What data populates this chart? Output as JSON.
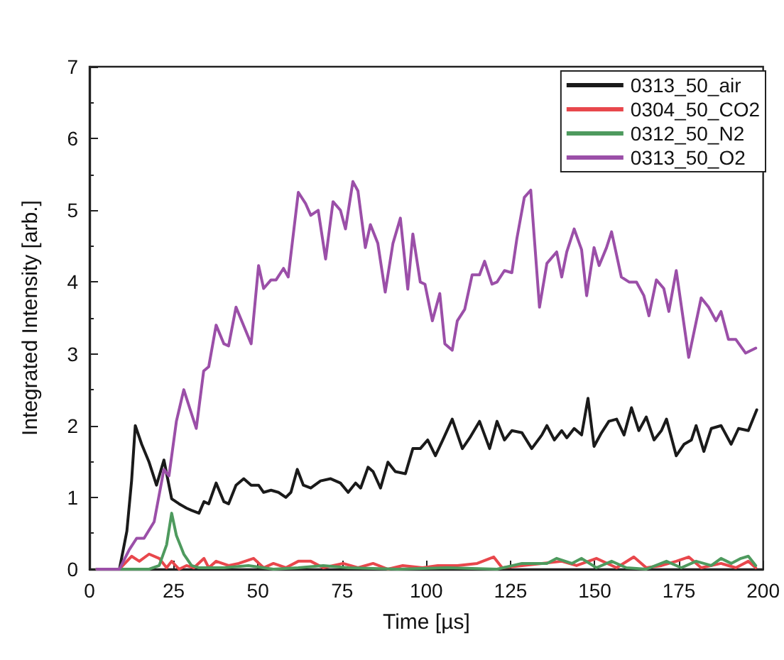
{
  "chart_data": {
    "type": "line",
    "xlabel": "Time [µs]",
    "ylabel": "Integrated Intensity [arb.]",
    "xlim": [
      0,
      200
    ],
    "xticks": [
      0,
      25,
      50,
      75,
      100,
      125,
      150,
      175,
      200
    ],
    "ylim": [
      0,
      7
    ],
    "yticks": [
      0,
      1,
      2,
      3,
      4,
      5,
      6,
      7
    ],
    "grid": false,
    "legend": "top right",
    "marker": "none",
    "line_style": "solid",
    "series": [
      {
        "name": "0313_50_air",
        "color": "#1a1a1a",
        "x": [
          2.2,
          8.9,
          11.1,
          12.5,
          13.6,
          15.5,
          17.7,
          19.9,
          22.1,
          24.4,
          26.6,
          28.8,
          30.3,
          32.5,
          34,
          35.4,
          37.6,
          39.9,
          41.3,
          43.5,
          45.8,
          48,
          50.2,
          51.7,
          53.9,
          56.1,
          58.3,
          59.8,
          61.7,
          63.5,
          65.7,
          68.6,
          71.6,
          74.5,
          76.8,
          79,
          80.5,
          82.7,
          84.2,
          86.4,
          88.6,
          90.8,
          93.8,
          96,
          98.2,
          100.4,
          102.7,
          104.9,
          107.7,
          110.7,
          112.9,
          115.8,
          118.8,
          121,
          123.2,
          125.4,
          128.4,
          131.3,
          134.3,
          135.8,
          138,
          140.2,
          141.7,
          143.9,
          146.1,
          148,
          149.8,
          152,
          154.2,
          156.5,
          158.7,
          160.9,
          163.1,
          165.3,
          167.6,
          169.8,
          171.3,
          174.2,
          176.5,
          178.7,
          180.1,
          182.4,
          184.6,
          187.5,
          190.5,
          192.7,
          195.6,
          198.1
        ],
        "values": [
          0,
          0,
          0.53,
          1.23,
          2.0,
          1.74,
          1.49,
          1.17,
          1.52,
          0.98,
          0.91,
          0.85,
          0.82,
          0.78,
          0.94,
          0.91,
          1.2,
          0.94,
          0.91,
          1.17,
          1.26,
          1.17,
          1.17,
          1.07,
          1.1,
          1.07,
          1.0,
          1.07,
          1.39,
          1.17,
          1.13,
          1.23,
          1.26,
          1.2,
          1.07,
          1.2,
          1.13,
          1.42,
          1.36,
          1.13,
          1.49,
          1.36,
          1.33,
          1.68,
          1.68,
          1.8,
          1.58,
          1.8,
          2.09,
          1.68,
          1.83,
          2.06,
          1.68,
          2.06,
          1.8,
          1.93,
          1.9,
          1.68,
          1.87,
          2.0,
          1.8,
          1.93,
          1.83,
          1.96,
          1.87,
          2.38,
          1.71,
          1.9,
          2.06,
          2.09,
          1.87,
          2.25,
          1.93,
          2.12,
          1.8,
          1.93,
          2.09,
          1.58,
          1.74,
          1.8,
          2.0,
          1.64,
          1.96,
          2.0,
          1.74,
          1.96,
          1.93,
          2.22
        ]
      },
      {
        "name": "0304_50_CO2",
        "color": "#e8474c",
        "x": [
          2.2,
          8.9,
          12.5,
          14.8,
          17.7,
          20.7,
          22.9,
          24.4,
          26.6,
          28.8,
          31,
          34,
          35.4,
          37.6,
          41.3,
          44.3,
          48.7,
          51.7,
          54.6,
          58.3,
          62,
          65.7,
          69.4,
          75.3,
          79.7,
          84.2,
          88.6,
          93,
          98.9,
          103.4,
          109.2,
          115.1,
          120,
          122.5,
          128.4,
          134.3,
          140.2,
          144.6,
          150.5,
          156.5,
          161.6,
          165.3,
          169.8,
          174.2,
          177.9,
          181.6,
          187.5,
          191.9,
          195.6,
          197.8
        ],
        "values": [
          0,
          0,
          0.18,
          0.11,
          0.21,
          0.15,
          0.02,
          0.11,
          0,
          0.05,
          0.02,
          0.15,
          0.02,
          0.11,
          0.05,
          0.08,
          0.15,
          0.02,
          0.08,
          0.02,
          0.11,
          0.11,
          0.02,
          0.08,
          0.02,
          0.08,
          0,
          0.05,
          0.02,
          0.05,
          0.05,
          0.08,
          0.17,
          0.02,
          0.05,
          0.08,
          0.11,
          0.05,
          0.15,
          0.02,
          0.17,
          0.02,
          0.05,
          0.11,
          0.17,
          0.02,
          0.08,
          0.02,
          0.11,
          0.02
        ]
      },
      {
        "name": "0312_50_N2",
        "color": "#4e9a5e",
        "x": [
          2.2,
          17.7,
          20.7,
          22.9,
          24.4,
          25.8,
          28,
          30.3,
          32.5,
          39.9,
          47.2,
          54.6,
          62,
          69.4,
          76.8,
          91.5,
          106.2,
          121,
          128.4,
          135.8,
          138.7,
          143.2,
          146.1,
          150.5,
          155,
          159.4,
          165.3,
          171.3,
          175.7,
          180.1,
          184.6,
          187.5,
          190.5,
          193.4,
          195.6,
          197.8
        ],
        "values": [
          0,
          0,
          0.05,
          0.34,
          0.78,
          0.47,
          0.21,
          0.05,
          0.02,
          0.02,
          0.05,
          0,
          0.02,
          0.05,
          0.02,
          0,
          0.02,
          0,
          0.08,
          0.08,
          0.15,
          0.08,
          0.15,
          0.02,
          0.11,
          0.02,
          0,
          0.11,
          0.02,
          0.11,
          0.05,
          0.15,
          0.08,
          0.15,
          0.18,
          0.05
        ]
      },
      {
        "name": "0313_50_O2",
        "color": "#9b4fa8",
        "x": [
          2.2,
          8.9,
          11.8,
          14,
          16.2,
          19.2,
          22.1,
          23.6,
          25.8,
          28,
          31.7,
          33.9,
          35.4,
          37.6,
          39.9,
          41.3,
          43.5,
          48,
          50.2,
          51.7,
          53.9,
          55.4,
          57.6,
          59,
          62,
          64.2,
          65.7,
          67.9,
          70.1,
          72.3,
          74.5,
          76,
          78.2,
          79.7,
          81.9,
          83.4,
          85.6,
          87.8,
          90.1,
          92.3,
          94.5,
          96,
          98.2,
          99.6,
          101.8,
          104,
          105.5,
          107.7,
          109.2,
          111.4,
          113.6,
          115.8,
          117.3,
          119.5,
          121,
          123.2,
          125.4,
          126.9,
          129.1,
          131,
          133.6,
          135.8,
          138.7,
          140.2,
          141.7,
          143.9,
          146.1,
          147.6,
          149.8,
          151.3,
          153.5,
          155,
          157.9,
          160.2,
          162.4,
          164.6,
          166.1,
          168.3,
          170.5,
          172,
          174.2,
          177.9,
          181.6,
          183.8,
          186,
          187.5,
          189.7,
          191.9,
          194.8,
          197.8
        ],
        "values": [
          0,
          0,
          0.27,
          0.43,
          0.43,
          0.66,
          1.39,
          1.3,
          2.06,
          2.5,
          1.96,
          2.76,
          2.82,
          3.4,
          3.14,
          3.11,
          3.65,
          3.14,
          4.23,
          3.91,
          4.03,
          4.03,
          4.19,
          4.07,
          5.25,
          5.09,
          4.93,
          5.0,
          4.32,
          5.12,
          5.0,
          4.74,
          5.4,
          5.27,
          4.48,
          4.8,
          4.54,
          3.86,
          4.54,
          4.89,
          3.9,
          4.67,
          4.0,
          3.97,
          3.46,
          3.84,
          3.14,
          3.05,
          3.46,
          3.62,
          4.1,
          4.1,
          4.29,
          3.97,
          4.0,
          4.16,
          4.13,
          4.61,
          5.18,
          5.28,
          3.65,
          4.26,
          4.42,
          4.07,
          4.42,
          4.74,
          4.45,
          3.81,
          4.48,
          4.23,
          4.48,
          4.7,
          4.07,
          4.0,
          4.0,
          3.81,
          3.53,
          4.03,
          3.91,
          3.59,
          4.16,
          2.95,
          3.78,
          3.65,
          3.46,
          3.59,
          3.2,
          3.2,
          3.01,
          3.08
        ]
      }
    ]
  }
}
